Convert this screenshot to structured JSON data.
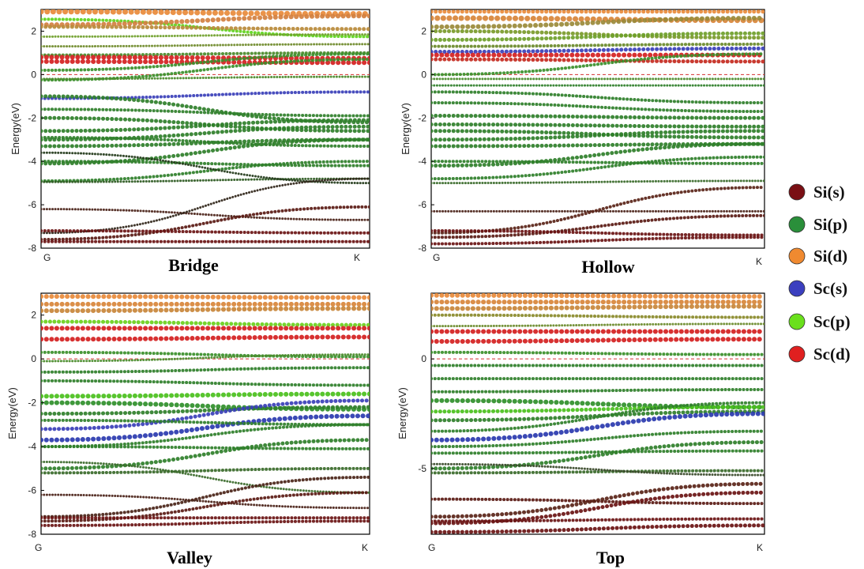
{
  "figure": {
    "legend": [
      {
        "label": "Si(s)",
        "color": "#7a0f14"
      },
      {
        "label": "Si(p)",
        "color": "#2a8f3a"
      },
      {
        "label": "Si(d)",
        "color": "#f08a30"
      },
      {
        "label": "Sc(s)",
        "color": "#3b3fbf"
      },
      {
        "label": "Sc(p)",
        "color": "#6ae01c"
      },
      {
        "label": "Sc(d)",
        "color": "#e02020"
      }
    ],
    "fermi_line_color": "#d43030"
  },
  "chart_data": [
    {
      "type": "line",
      "title": "Bridge",
      "ylabel": "Energy(eV)",
      "xticks": [
        "G",
        "K"
      ],
      "yticks": [
        2,
        0,
        -2,
        -4,
        -6,
        -8
      ],
      "ylim": [
        -8,
        3
      ],
      "fermi_level": 0,
      "x": [
        0,
        1
      ],
      "bands": [
        {
          "y": [
            2.55,
            1.75
          ],
          "w": 4,
          "color": "#5fd41c"
        },
        {
          "y": [
            2.9,
            2.8
          ],
          "w": 7,
          "color": "#e88a3a"
        },
        {
          "y": [
            2.3,
            2.7
          ],
          "w": 6,
          "color": "#d28040"
        },
        {
          "y": [
            2.2,
            2.1
          ],
          "w": 5,
          "color": "#b88a3a"
        },
        {
          "y": [
            1.75,
            1.85
          ],
          "w": 3,
          "color": "#6fa02a"
        },
        {
          "y": [
            1.3,
            1.4
          ],
          "w": 3,
          "color": "#6f8a2a"
        },
        {
          "y": [
            0.9,
            1.0
          ],
          "w": 4,
          "color": "#4a8a2a"
        },
        {
          "y": [
            0.8,
            0.75
          ],
          "w": 6,
          "color": "#d42020"
        },
        {
          "y": [
            0.6,
            0.55
          ],
          "w": 6,
          "color": "#d42020"
        },
        {
          "y": [
            0.2,
            0.95
          ],
          "w": 4,
          "color": "#3a8f2a"
        },
        {
          "y": [
            -0.25,
            0.7
          ],
          "w": 4,
          "color": "#3a8f2a"
        },
        {
          "y": [
            -0.2,
            -0.1
          ],
          "w": 3,
          "color": "#4a8a2a"
        },
        {
          "y": [
            -1.1,
            -0.8
          ],
          "w": 4,
          "color": "#3a3fb8"
        },
        {
          "y": [
            -1.0,
            -2.2
          ],
          "w": 5,
          "color": "#2f7f2a"
        },
        {
          "y": [
            -1.6,
            -1.9
          ],
          "w": 4,
          "color": "#2f7f2a"
        },
        {
          "y": [
            -2.0,
            -2.6
          ],
          "w": 5,
          "color": "#2f7f2a"
        },
        {
          "y": [
            -2.6,
            -2.1
          ],
          "w": 5,
          "color": "#2f7f2a"
        },
        {
          "y": [
            -3.0,
            -2.4
          ],
          "w": 5,
          "color": "#2f7f2a"
        },
        {
          "y": [
            -3.3,
            -3.0
          ],
          "w": 5,
          "color": "#2f7f2a"
        },
        {
          "y": [
            -2.9,
            -3.3
          ],
          "w": 4,
          "color": "#2f7f2a"
        },
        {
          "y": [
            -4.1,
            -3.0
          ],
          "w": 5,
          "color": "#2f7f2a"
        },
        {
          "y": [
            -4.0,
            -4.2
          ],
          "w": 4,
          "color": "#2f7f2a"
        },
        {
          "y": [
            -4.9,
            -4.0
          ],
          "w": 4,
          "color": "#2f7f2a"
        },
        {
          "y": [
            -4.95,
            -4.8
          ],
          "w": 3,
          "color": "#2e5a22"
        },
        {
          "y": [
            -3.6,
            -5.0
          ],
          "w": 3,
          "color": "#233a1a"
        },
        {
          "y": [
            -6.2,
            -6.7
          ],
          "w": 3,
          "color": "#4a2218"
        },
        {
          "y": [
            -7.3,
            -4.8
          ],
          "w": 3,
          "color": "#2f2418"
        },
        {
          "y": [
            -7.6,
            -6.1
          ],
          "w": 4,
          "color": "#5a1a14"
        },
        {
          "y": [
            -7.2,
            -7.3
          ],
          "w": 4,
          "color": "#6a1414"
        },
        {
          "y": [
            -7.7,
            -7.7
          ],
          "w": 4,
          "color": "#6a1414"
        }
      ]
    },
    {
      "type": "line",
      "title": "Hollow",
      "ylabel": "Energy(eV)",
      "xticks": [
        "G",
        "K"
      ],
      "yticks": [
        2,
        0,
        -2,
        -4,
        -6,
        -8
      ],
      "ylim": [
        -8,
        3
      ],
      "fermi_level": 0,
      "x": [
        0,
        1
      ],
      "bands": [
        {
          "y": [
            2.9,
            2.9
          ],
          "w": 5,
          "color": "#e88a3a"
        },
        {
          "y": [
            2.6,
            2.5
          ],
          "w": 7,
          "color": "#d8863a"
        },
        {
          "y": [
            2.2,
            2.6
          ],
          "w": 6,
          "color": "#9a8a3a"
        },
        {
          "y": [
            2.0,
            1.7
          ],
          "w": 5,
          "color": "#7a9a2a"
        },
        {
          "y": [
            1.6,
            1.9
          ],
          "w": 5,
          "color": "#6fa02a"
        },
        {
          "y": [
            1.3,
            1.4
          ],
          "w": 4,
          "color": "#6a8a2a"
        },
        {
          "y": [
            1.05,
            1.2
          ],
          "w": 5,
          "color": "#3a3fb8"
        },
        {
          "y": [
            0.9,
            0.9
          ],
          "w": 6,
          "color": "#d42020"
        },
        {
          "y": [
            0.7,
            0.6
          ],
          "w": 5,
          "color": "#c42a20"
        },
        {
          "y": [
            0.0,
            0.95
          ],
          "w": 4,
          "color": "#3a8f2a"
        },
        {
          "y": [
            -0.2,
            -0.2
          ],
          "w": 3,
          "color": "#4a8a2a"
        },
        {
          "y": [
            -0.5,
            -0.5
          ],
          "w": 3,
          "color": "#2f7f2a"
        },
        {
          "y": [
            -0.8,
            -1.3
          ],
          "w": 4,
          "color": "#2f7f2a"
        },
        {
          "y": [
            -1.3,
            -1.7
          ],
          "w": 4,
          "color": "#2f7f2a"
        },
        {
          "y": [
            -1.9,
            -2.0
          ],
          "w": 5,
          "color": "#2f7f2a"
        },
        {
          "y": [
            -2.3,
            -2.4
          ],
          "w": 5,
          "color": "#2f7f2a"
        },
        {
          "y": [
            -2.6,
            -2.9
          ],
          "w": 5,
          "color": "#2f7f2a"
        },
        {
          "y": [
            -3.0,
            -2.6
          ],
          "w": 5,
          "color": "#2f7f2a"
        },
        {
          "y": [
            -3.3,
            -3.2
          ],
          "w": 5,
          "color": "#2f7f2a"
        },
        {
          "y": [
            -4.2,
            -3.2
          ],
          "w": 5,
          "color": "#2f7f2a"
        },
        {
          "y": [
            -4.0,
            -4.1
          ],
          "w": 4,
          "color": "#2f7f2a"
        },
        {
          "y": [
            -4.8,
            -3.8
          ],
          "w": 4,
          "color": "#2f7f2a"
        },
        {
          "y": [
            -5.0,
            -4.9
          ],
          "w": 3,
          "color": "#3a6a2a"
        },
        {
          "y": [
            -6.3,
            -6.3
          ],
          "w": 3,
          "color": "#4a2218"
        },
        {
          "y": [
            -7.3,
            -5.2
          ],
          "w": 4,
          "color": "#5a2418"
        },
        {
          "y": [
            -7.5,
            -6.5
          ],
          "w": 4,
          "color": "#5a1a14"
        },
        {
          "y": [
            -7.8,
            -7.5
          ],
          "w": 4,
          "color": "#6a1414"
        },
        {
          "y": [
            -7.2,
            -7.4
          ],
          "w": 4,
          "color": "#6a1414"
        }
      ]
    },
    {
      "type": "line",
      "title": "Valley",
      "ylabel": "Energy(eV)",
      "xticks": [
        "G",
        "K"
      ],
      "yticks": [
        2,
        0,
        -2,
        -4,
        -6,
        -8
      ],
      "ylim": [
        -8,
        3
      ],
      "fermi_level": 0,
      "x": [
        0,
        1
      ],
      "bands": [
        {
          "y": [
            2.85,
            2.8
          ],
          "w": 6,
          "color": "#e88a3a"
        },
        {
          "y": [
            2.5,
            2.5
          ],
          "w": 6,
          "color": "#d8863a"
        },
        {
          "y": [
            2.2,
            2.3
          ],
          "w": 6,
          "color": "#c8863a"
        },
        {
          "y": [
            1.7,
            1.55
          ],
          "w": 5,
          "color": "#6ad01c"
        },
        {
          "y": [
            1.4,
            1.4
          ],
          "w": 6,
          "color": "#d42020"
        },
        {
          "y": [
            0.9,
            1.0
          ],
          "w": 6,
          "color": "#d42020"
        },
        {
          "y": [
            0.3,
            0.1
          ],
          "w": 4,
          "color": "#3a8f2a"
        },
        {
          "y": [
            -0.1,
            0.2
          ],
          "w": 3,
          "color": "#4a8a2a"
        },
        {
          "y": [
            -0.6,
            -0.4
          ],
          "w": 4,
          "color": "#2f7f2a"
        },
        {
          "y": [
            -1.0,
            -1.2
          ],
          "w": 4,
          "color": "#2f7f2a"
        },
        {
          "y": [
            -1.7,
            -1.6
          ],
          "w": 6,
          "color": "#4ac01c"
        },
        {
          "y": [
            -2.0,
            -2.3
          ],
          "w": 6,
          "color": "#2f8f2a"
        },
        {
          "y": [
            -2.5,
            -2.2
          ],
          "w": 5,
          "color": "#2f7f2a"
        },
        {
          "y": [
            -3.2,
            -1.9
          ],
          "w": 5,
          "color": "#3a3fb8"
        },
        {
          "y": [
            -3.7,
            -2.6
          ],
          "w": 6,
          "color": "#2a3aaf"
        },
        {
          "y": [
            -2.8,
            -3.0
          ],
          "w": 4,
          "color": "#2f7f2a"
        },
        {
          "y": [
            -4.0,
            -3.0
          ],
          "w": 4,
          "color": "#2f7f2a"
        },
        {
          "y": [
            -4.0,
            -4.1
          ],
          "w": 4,
          "color": "#2f7f2a"
        },
        {
          "y": [
            -5.0,
            -3.7
          ],
          "w": 5,
          "color": "#2f7f2a"
        },
        {
          "y": [
            -5.2,
            -5.0
          ],
          "w": 4,
          "color": "#3a6a2a"
        },
        {
          "y": [
            -4.7,
            -6.1
          ],
          "w": 3,
          "color": "#3a6a2a"
        },
        {
          "y": [
            -6.2,
            -6.8
          ],
          "w": 3,
          "color": "#4a2218"
        },
        {
          "y": [
            -7.2,
            -5.4
          ],
          "w": 4,
          "color": "#4a2418"
        },
        {
          "y": [
            -7.4,
            -6.1
          ],
          "w": 4,
          "color": "#5a1a14"
        },
        {
          "y": [
            -7.6,
            -7.4
          ],
          "w": 4,
          "color": "#6a1414"
        },
        {
          "y": [
            -7.25,
            -7.25
          ],
          "w": 4,
          "color": "#6a1414"
        }
      ]
    },
    {
      "type": "line",
      "title": "Top",
      "ylabel": "Energy(eV)",
      "xticks": [
        "G",
        "K"
      ],
      "yticks": [
        0,
        -5
      ],
      "ylim": [
        -8,
        3
      ],
      "fermi_level": 0,
      "x": [
        0,
        1
      ],
      "bands": [
        {
          "y": [
            2.9,
            2.85
          ],
          "w": 6,
          "color": "#e88a3a"
        },
        {
          "y": [
            2.6,
            2.6
          ],
          "w": 6,
          "color": "#d8863a"
        },
        {
          "y": [
            2.3,
            2.4
          ],
          "w": 6,
          "color": "#c8863a"
        },
        {
          "y": [
            2.0,
            1.9
          ],
          "w": 4,
          "color": "#8a8a2a"
        },
        {
          "y": [
            1.5,
            1.6
          ],
          "w": 3,
          "color": "#6a8a2a"
        },
        {
          "y": [
            1.25,
            1.25
          ],
          "w": 6,
          "color": "#d42020"
        },
        {
          "y": [
            0.8,
            0.9
          ],
          "w": 6,
          "color": "#d42020"
        },
        {
          "y": [
            0.3,
            0.2
          ],
          "w": 4,
          "color": "#3a8f2a"
        },
        {
          "y": [
            -0.3,
            -0.3
          ],
          "w": 4,
          "color": "#2f7f2a"
        },
        {
          "y": [
            -0.9,
            -0.9
          ],
          "w": 4,
          "color": "#2f7f2a"
        },
        {
          "y": [
            -1.5,
            -1.4
          ],
          "w": 4,
          "color": "#2f7f2a"
        },
        {
          "y": [
            -1.9,
            -2.2
          ],
          "w": 6,
          "color": "#2f8f2a"
        },
        {
          "y": [
            -2.4,
            -2.2
          ],
          "w": 5,
          "color": "#4ac01c"
        },
        {
          "y": [
            -2.8,
            -2.4
          ],
          "w": 5,
          "color": "#2f7f2a"
        },
        {
          "y": [
            -3.3,
            -2.0
          ],
          "w": 4,
          "color": "#2f7f2a"
        },
        {
          "y": [
            -3.7,
            -2.5
          ],
          "w": 6,
          "color": "#2a3aaf"
        },
        {
          "y": [
            -4.0,
            -3.3
          ],
          "w": 4,
          "color": "#2f7f2a"
        },
        {
          "y": [
            -4.3,
            -4.2
          ],
          "w": 4,
          "color": "#2f7f2a"
        },
        {
          "y": [
            -5.0,
            -3.8
          ],
          "w": 5,
          "color": "#2f7f2a"
        },
        {
          "y": [
            -5.2,
            -5.1
          ],
          "w": 4,
          "color": "#3a6a2a"
        },
        {
          "y": [
            -4.8,
            -5.3
          ],
          "w": 3,
          "color": "#3a4a2a"
        },
        {
          "y": [
            -6.4,
            -6.6
          ],
          "w": 4,
          "color": "#5a1a14"
        },
        {
          "y": [
            -7.2,
            -5.7
          ],
          "w": 5,
          "color": "#5a2418"
        },
        {
          "y": [
            -7.5,
            -6.1
          ],
          "w": 5,
          "color": "#6a1414"
        },
        {
          "y": [
            -7.9,
            -7.6
          ],
          "w": 5,
          "color": "#6a1414"
        },
        {
          "y": [
            -7.4,
            -7.3
          ],
          "w": 4,
          "color": "#6a1414"
        }
      ]
    }
  ]
}
